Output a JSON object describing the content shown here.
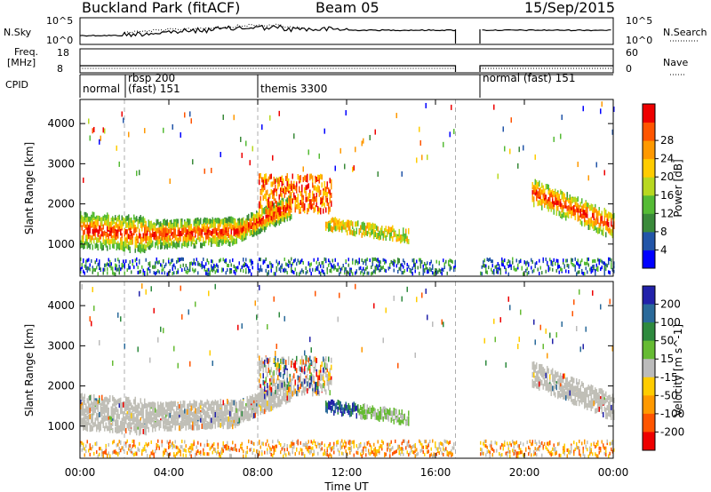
{
  "header": {
    "title": "Buckland Park (fitACF)",
    "beam": "Beam 05",
    "date": "15/Sep/2015"
  },
  "panels": {
    "nsky_label": "N.Sky",
    "nsky_ticks": [
      "10^5",
      "10^0"
    ],
    "nsearch_label": "N.Search",
    "nsearch_ticks": [
      "10^5",
      "10^0"
    ],
    "freq_label_1": "Freq.",
    "freq_label_2": "[MHz]",
    "freq_ticks": [
      "18",
      "8"
    ],
    "nave_label": "Nave",
    "nave_ticks": [
      "60",
      "0"
    ],
    "cpid_label": "CPID",
    "cpid_modes": [
      {
        "label": "normal",
        "time": 0.1
      },
      {
        "label": "rbsp 200",
        "time": 1.75
      },
      {
        "label": "(fast) 151",
        "time": 1.75
      },
      {
        "label": "themis 3300",
        "time": 7.9
      },
      {
        "label": "normal (fast) 151",
        "time": 18.05
      }
    ]
  },
  "chart_data": [
    {
      "type": "heatmap",
      "name": "power",
      "ylabel": "Slant Range [km]",
      "yticks": [
        1000,
        2000,
        3000,
        4000
      ],
      "ylim": [
        200,
        4600
      ],
      "xlim": [
        0,
        24
      ],
      "data_gap_hours": [
        16.9,
        18.0
      ],
      "colorbar": {
        "label": "Power [dB]",
        "range": [
          0,
          32
        ],
        "ticks": [
          "4",
          "8",
          "12",
          "16",
          "20",
          "24",
          "28"
        ],
        "colors": [
          "#0000ff",
          "#2255a8",
          "#3a8a3a",
          "#55bb35",
          "#b8d820",
          "#ffcc00",
          "#ff9900",
          "#ff5500",
          "#ee0000"
        ]
      }
    },
    {
      "type": "heatmap",
      "name": "velocity",
      "ylabel": "Slant Range [km]",
      "yticks": [
        1000,
        2000,
        3000,
        4000
      ],
      "ylim": [
        200,
        4600
      ],
      "xlim": [
        0,
        24
      ],
      "data_gap_hours": [
        16.9,
        18.0
      ],
      "colorbar": {
        "label": "Velocity [m s^-1]",
        "ticks": [
          "200",
          "100",
          "50",
          "15",
          "-15",
          "-50",
          "-100",
          "-200"
        ],
        "colors": [
          "#2222aa",
          "#2a6a9a",
          "#2e8a3e",
          "#66bb33",
          "#bbbbbb",
          "#ffcc00",
          "#ff9900",
          "#ff5500",
          "#ee0000"
        ],
        "ground_scatter_color": "#c0bfb7"
      }
    }
  ],
  "xaxis": {
    "label": "Time UT",
    "ticks": [
      "00:00",
      "04:00",
      "08:00",
      "12:00",
      "16:00",
      "20:00",
      "00:00"
    ],
    "tick_hours": [
      0,
      4,
      8,
      12,
      16,
      20,
      24
    ]
  }
}
